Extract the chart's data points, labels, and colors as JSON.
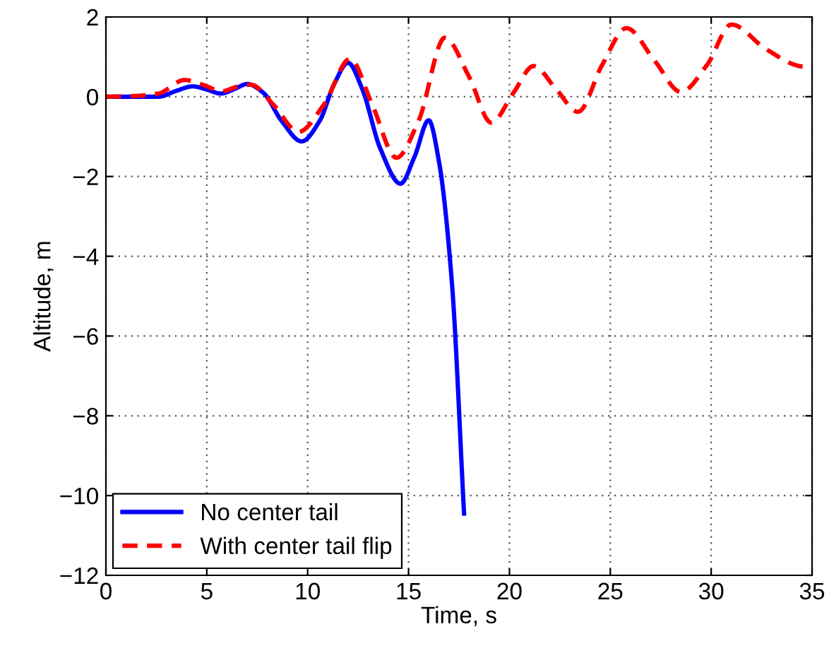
{
  "chart_data": {
    "type": "line",
    "xlabel": "Time, s",
    "ylabel": "Altitude, m",
    "xlim": [
      0,
      35
    ],
    "ylim": [
      -12,
      2
    ],
    "xticks": [
      0,
      5,
      10,
      15,
      20,
      25,
      30,
      35
    ],
    "yticks": [
      -12,
      -10,
      -8,
      -6,
      -4,
      -2,
      0,
      2
    ],
    "grid": true,
    "legend": "bottom left",
    "marker": "none",
    "series": [
      {
        "name": "No center tail",
        "color": "#0000ff",
        "line_style": "solid",
        "x": [
          0,
          1.5,
          2.6,
          3.5,
          4.3,
          5.0,
          5.7,
          6.4,
          7.0,
          7.8,
          8.7,
          9.7,
          10.6,
          11.3,
          12.0,
          12.7,
          13.6,
          14.6,
          15.3,
          16.0,
          16.5,
          17.15,
          17.75
        ],
        "values": [
          0,
          0,
          0,
          0.15,
          0.26,
          0.18,
          0.08,
          0.2,
          0.32,
          0.1,
          -0.6,
          -1.12,
          -0.6,
          0.3,
          0.85,
          0.2,
          -1.3,
          -2.18,
          -1.5,
          -0.59,
          -1.6,
          -4.67,
          -10.45
        ]
      },
      {
        "name": "With center tail flip",
        "color": "#ff0000",
        "line_style": "dashed",
        "x": [
          0,
          1.5,
          2.6,
          3.9,
          4.8,
          5.75,
          6.5,
          7.2,
          8.3,
          9.55,
          10.8,
          12.1,
          13.2,
          14.4,
          15.5,
          16.8,
          18.0,
          19.1,
          20.2,
          21.2,
          22.3,
          23.4,
          24.6,
          25.8,
          27.2,
          28.5,
          29.8,
          31.0,
          32.7,
          34.35,
          35
        ],
        "values": [
          0,
          0.02,
          0.08,
          0.42,
          0.3,
          0.14,
          0.25,
          0.3,
          -0.2,
          -0.88,
          -0.2,
          0.95,
          -0.2,
          -1.53,
          -0.6,
          1.48,
          0.5,
          -0.65,
          0.1,
          0.77,
          0.2,
          -0.38,
          0.8,
          1.72,
          0.9,
          0.12,
          0.8,
          1.81,
          1.2,
          0.77,
          0.72
        ]
      }
    ]
  }
}
